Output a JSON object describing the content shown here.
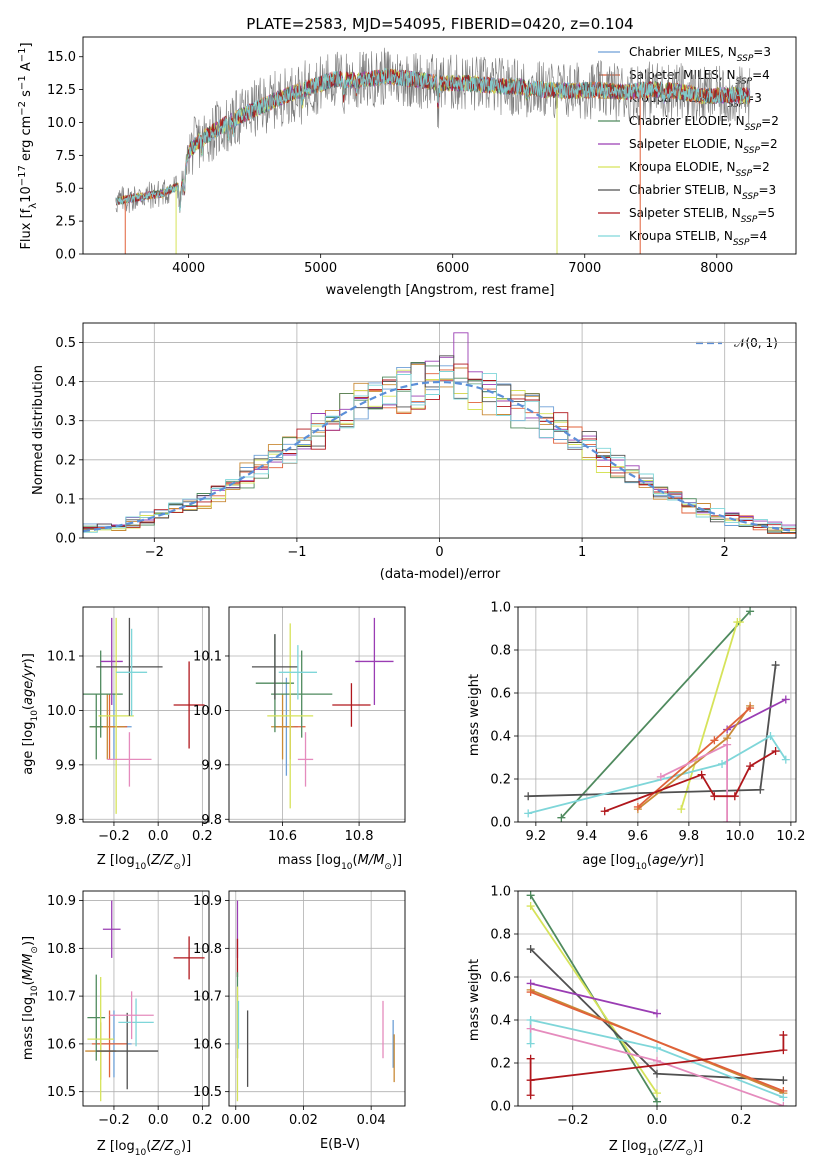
{
  "colors": {
    "chabrier_miles": "#6d9fd6",
    "salpeter_miles": "#e0613a",
    "kroupa_miles": "#c98a36",
    "chabrier_elodie": "#4f8a5e",
    "salpeter_elodie": "#9a3db3",
    "kroupa_elodie": "#d6e35a",
    "chabrier_stelib": "#505050",
    "salpeter_stelib": "#b0171c",
    "kroupa_stelib": "#7fd6d9",
    "pink": "#e58bbd",
    "normal_curve": "#5b8fd8"
  },
  "chart_data": [
    {
      "id": "spectrum",
      "type": "line",
      "title": "PLATE=2583, MJD=54095, FIBERID=0420, z=0.104",
      "xlabel": "wavelength [Angstrom, rest frame]",
      "ylabel_parts": [
        "Flux [f",
        "λ",
        "10",
        "−17",
        " erg cm",
        "−2",
        " s",
        "−1",
        " A",
        "−1",
        "]"
      ],
      "xlim": [
        3200,
        8600
      ],
      "ylim": [
        0,
        16.5
      ],
      "xticks": [
        4000,
        5000,
        6000,
        7000,
        8000
      ],
      "yticks": [
        0.0,
        2.5,
        5.0,
        7.5,
        10.0,
        12.5,
        15.0
      ],
      "grid": false,
      "legend_position": "top-right",
      "continuum_x": [
        3450,
        3600,
        3800,
        3950,
        4000,
        4100,
        4300,
        4500,
        4700,
        4900,
        5100,
        5300,
        5500,
        5700,
        5900,
        6100,
        6300,
        6500,
        6700,
        6900,
        7100,
        7300,
        7500,
        7700,
        7900,
        8100,
        8250
      ],
      "continuum_y": [
        4.0,
        4.3,
        4.6,
        5.3,
        7.8,
        8.8,
        10.0,
        11.0,
        11.9,
        12.6,
        13.3,
        13.2,
        13.5,
        13.3,
        13.0,
        13.0,
        12.8,
        12.7,
        12.5,
        12.4,
        12.5,
        12.3,
        12.5,
        12.4,
        12.0,
        12.1,
        12.0
      ],
      "series": [
        {
          "name": "Chabrier MILES",
          "nssp": "3",
          "color_key": "chabrier_miles"
        },
        {
          "name": "Salpeter MILES",
          "nssp": "4",
          "color_key": "salpeter_miles"
        },
        {
          "name": "Kroupa MILES",
          "nssp": "3",
          "color_key": "kroupa_miles"
        },
        {
          "name": "Chabrier ELODIE",
          "nssp": "2",
          "color_key": "chabrier_elodie"
        },
        {
          "name": "Salpeter ELODIE",
          "nssp": "2",
          "color_key": "salpeter_elodie"
        },
        {
          "name": "Kroupa ELODIE",
          "nssp": "2",
          "color_key": "kroupa_elodie"
        },
        {
          "name": "Chabrier STELIB",
          "nssp": "3",
          "color_key": "chabrier_stelib"
        },
        {
          "name": "Salpeter STELIB",
          "nssp": "5",
          "color_key": "salpeter_stelib"
        },
        {
          "name": "Kroupa STELIB",
          "nssp": "4",
          "color_key": "kroupa_stelib"
        }
      ],
      "legend_prefix": ", N",
      "legend_sub": "SSP",
      "legend_suffix": "="
    },
    {
      "id": "residuals",
      "type": "histogram",
      "xlabel": "(data-model)/error",
      "ylabel": "Normed distribution",
      "xlim": [
        -2.5,
        2.5
      ],
      "ylim": [
        0,
        0.55
      ],
      "xticks": [
        -2,
        -1,
        0,
        1,
        2
      ],
      "xtick_labels": [
        "−2",
        "−1",
        "0",
        "1",
        "2"
      ],
      "yticks": [
        0.0,
        0.1,
        0.2,
        0.3,
        0.4,
        0.5
      ],
      "grid": true,
      "bin_width": 0.1,
      "legend_position": "top-right",
      "normal_label": "𝒩(0, 1)"
    },
    {
      "id": "age_vs_Z",
      "type": "errorbar",
      "xlabel_parts": [
        "Z [log",
        "10",
        "(",
        "Z/Z",
        "⊙",
        ")]"
      ],
      "ylabel_parts": [
        "age  [log",
        "10",
        "(",
        "age/yr",
        ")]"
      ],
      "xlim": [
        -0.34,
        0.23
      ],
      "ylim": [
        9.795,
        10.19
      ],
      "xticks": [
        -0.2,
        0.0,
        0.2
      ],
      "xtick_labels": [
        "−0.2",
        "0.0",
        "0.2"
      ],
      "yticks": [
        9.8,
        9.9,
        10.0,
        10.1
      ],
      "grid": true,
      "points": [
        {
          "x": -0.2,
          "xerr": 0.08,
          "y": 9.97,
          "yerr": 0.06,
          "c": "chabrier_miles"
        },
        {
          "x": -0.22,
          "xerr": 0.08,
          "y": 9.97,
          "yerr": 0.06,
          "c": "salpeter_miles"
        },
        {
          "x": -0.23,
          "xerr": 0.08,
          "y": 9.97,
          "yerr": 0.06,
          "c": "kroupa_miles"
        },
        {
          "x": -0.28,
          "xerr": 0.03,
          "y": 9.97,
          "yerr": 0.06,
          "c": "chabrier_elodie"
        },
        {
          "x": -0.26,
          "xerr": 0.1,
          "y": 10.03,
          "yerr": 0.08,
          "c": "chabrier_elodie"
        },
        {
          "x": -0.21,
          "xerr": 0.05,
          "y": 10.09,
          "yerr": 0.08,
          "c": "salpeter_elodie"
        },
        {
          "x": -0.19,
          "xerr": 0.08,
          "y": 9.99,
          "yerr": 0.18,
          "c": "kroupa_elodie"
        },
        {
          "x": -0.13,
          "xerr": 0.15,
          "y": 10.08,
          "yerr": 0.09,
          "c": "chabrier_stelib"
        },
        {
          "x": 0.14,
          "xerr": 0.07,
          "y": 10.01,
          "yerr": 0.08,
          "c": "salpeter_stelib"
        },
        {
          "x": -0.12,
          "xerr": 0.07,
          "y": 10.07,
          "yerr": 0.08,
          "c": "kroupa_stelib"
        },
        {
          "x": -0.13,
          "xerr": 0.1,
          "y": 9.91,
          "yerr": 0.05,
          "c": "pink"
        }
      ]
    },
    {
      "id": "age_vs_mass",
      "type": "errorbar",
      "xlabel_parts": [
        "mass [log",
        "10",
        "(",
        "M/M",
        "⊙",
        ")]"
      ],
      "ylabel_parts": [],
      "xlim": [
        10.46,
        10.92
      ],
      "ylim": [
        9.795,
        10.19
      ],
      "xticks": [
        10.6,
        10.8
      ],
      "xtick_labels": [
        "10.6",
        "10.8"
      ],
      "yticks": [
        9.8,
        9.9,
        10.0,
        10.1
      ],
      "grid": true,
      "points": [
        {
          "x": 10.61,
          "xerr": 0.03,
          "y": 9.97,
          "yerr": 0.09,
          "c": "chabrier_miles"
        },
        {
          "x": 10.62,
          "xerr": 0.04,
          "y": 9.97,
          "yerr": 0.06,
          "c": "salpeter_miles"
        },
        {
          "x": 10.6,
          "xerr": 0.03,
          "y": 9.97,
          "yerr": 0.06,
          "c": "kroupa_miles"
        },
        {
          "x": 10.65,
          "xerr": 0.08,
          "y": 10.03,
          "yerr": 0.08,
          "c": "chabrier_elodie"
        },
        {
          "x": 10.58,
          "xerr": 0.05,
          "y": 10.05,
          "yerr": 0.09,
          "c": "chabrier_elodie"
        },
        {
          "x": 10.84,
          "xerr": 0.05,
          "y": 10.09,
          "yerr": 0.08,
          "c": "salpeter_elodie"
        },
        {
          "x": 10.62,
          "xerr": 0.06,
          "y": 9.99,
          "yerr": 0.17,
          "c": "kroupa_elodie"
        },
        {
          "x": 10.58,
          "xerr": 0.06,
          "y": 10.08,
          "yerr": 0.06,
          "c": "chabrier_stelib"
        },
        {
          "x": 10.78,
          "xerr": 0.05,
          "y": 10.01,
          "yerr": 0.04,
          "c": "salpeter_stelib"
        },
        {
          "x": 10.64,
          "xerr": 0.05,
          "y": 10.07,
          "yerr": 0.05,
          "c": "kroupa_stelib"
        },
        {
          "x": 10.66,
          "xerr": 0.02,
          "y": 9.91,
          "yerr": 0.05,
          "c": "pink"
        }
      ]
    },
    {
      "id": "mass_weight_vs_age",
      "type": "line",
      "xlabel_parts": [
        "age  [log",
        "10",
        "(",
        "age/yr",
        ")]"
      ],
      "ylabel": "mass weight",
      "xlim": [
        9.13,
        10.22
      ],
      "ylim": [
        0,
        1.0
      ],
      "xticks": [
        9.2,
        9.4,
        9.6,
        9.8,
        10.0,
        10.2
      ],
      "xtick_labels": [
        "9.2",
        "9.4",
        "9.6",
        "9.8",
        "10.0",
        "10.2"
      ],
      "yticks": [
        0.0,
        0.2,
        0.4,
        0.6,
        0.8,
        1.0
      ],
      "grid": true,
      "series": [
        {
          "c": "chabrier_elodie",
          "x": [
            9.3,
            10.04
          ],
          "y": [
            0.02,
            0.98
          ]
        },
        {
          "c": "kroupa_elodie",
          "x": [
            9.77,
            9.99,
            10.0
          ],
          "y": [
            0.06,
            0.93,
            0.93
          ]
        },
        {
          "c": "chabrier_stelib",
          "x": [
            9.17,
            10.08,
            10.14
          ],
          "y": [
            0.12,
            0.15,
            0.73
          ]
        },
        {
          "c": "kroupa_stelib",
          "x": [
            9.17,
            9.93,
            10.12,
            10.18
          ],
          "y": [
            0.04,
            0.27,
            0.4,
            0.29
          ]
        },
        {
          "c": "salpeter_elodie",
          "x": [
            9.95,
            10.18
          ],
          "y": [
            0.43,
            0.57
          ]
        },
        {
          "c": "kroupa_miles",
          "x": [
            9.6,
            9.95,
            10.04
          ],
          "y": [
            0.06,
            0.39,
            0.54
          ]
        },
        {
          "c": "salpeter_miles",
          "x": [
            9.6,
            9.9,
            10.04
          ],
          "y": [
            0.07,
            0.38,
            0.53
          ]
        },
        {
          "c": "pink",
          "x": [
            9.69,
            9.95,
            9.95
          ],
          "y": [
            0.21,
            0.36,
            0.0
          ]
        },
        {
          "c": "salpeter_stelib",
          "x": [
            9.47,
            9.85,
            9.9,
            9.98,
            10.04,
            10.14
          ],
          "y": [
            0.05,
            0.22,
            0.12,
            0.12,
            0.26,
            0.33
          ]
        }
      ]
    },
    {
      "id": "mass_vs_Z",
      "type": "errorbar",
      "xlabel_parts": [
        "Z [log",
        "10",
        "(",
        "Z/Z",
        "⊙",
        ")]"
      ],
      "ylabel_parts": [
        "mass [log",
        "10",
        "(",
        "M/M",
        "⊙",
        ")]"
      ],
      "xlim": [
        -0.34,
        0.23
      ],
      "ylim": [
        10.47,
        10.92
      ],
      "xticks": [
        -0.2,
        0.0,
        0.2
      ],
      "xtick_labels": [
        "−0.2",
        "0.0",
        "0.2"
      ],
      "yticks": [
        10.5,
        10.6,
        10.7,
        10.8,
        10.9
      ],
      "grid": true,
      "points": [
        {
          "x": -0.2,
          "xerr": 0.08,
          "y": 10.6,
          "yerr": 0.07,
          "c": "chabrier_miles"
        },
        {
          "x": -0.22,
          "xerr": 0.08,
          "y": 10.6,
          "yerr": 0.07,
          "c": "salpeter_miles"
        },
        {
          "x": -0.26,
          "xerr": 0.07,
          "y": 10.585,
          "yerr": 0.06,
          "c": "kroupa_miles"
        },
        {
          "x": -0.28,
          "xerr": 0.04,
          "y": 10.655,
          "yerr": 0.09,
          "c": "chabrier_elodie"
        },
        {
          "x": -0.21,
          "xerr": 0.04,
          "y": 10.84,
          "yerr": 0.06,
          "c": "salpeter_elodie"
        },
        {
          "x": -0.26,
          "xerr": 0.06,
          "y": 10.61,
          "yerr": 0.13,
          "c": "kroupa_elodie"
        },
        {
          "x": -0.14,
          "xerr": 0.14,
          "y": 10.585,
          "yerr": 0.08,
          "c": "chabrier_stelib"
        },
        {
          "x": 0.14,
          "xerr": 0.07,
          "y": 10.78,
          "yerr": 0.045,
          "c": "salpeter_stelib"
        },
        {
          "x": -0.1,
          "xerr": 0.08,
          "y": 10.645,
          "yerr": 0.05,
          "c": "kroupa_stelib"
        },
        {
          "x": -0.12,
          "xerr": 0.1,
          "y": 10.66,
          "yerr": 0.05,
          "c": "pink"
        }
      ]
    },
    {
      "id": "mass_vs_ebv",
      "type": "errorbar",
      "xlabel": "E(B-V)",
      "xlim": [
        -0.002,
        0.05
      ],
      "ylim": [
        10.47,
        10.92
      ],
      "xticks": [
        0.0,
        0.02,
        0.04
      ],
      "xtick_labels": [
        "0.00",
        "0.02",
        "0.04"
      ],
      "yticks": [
        10.5,
        10.6,
        10.7,
        10.8,
        10.9
      ],
      "grid": true,
      "points": [
        {
          "x": 0.0005,
          "xerr": 0,
          "y": 10.84,
          "yerr": 0.06,
          "c": "salpeter_elodie"
        },
        {
          "x": 0.0005,
          "xerr": 0,
          "y": 10.78,
          "yerr": 0.04,
          "c": "salpeter_stelib"
        },
        {
          "x": 0.0005,
          "xerr": 0,
          "y": 10.66,
          "yerr": 0.09,
          "c": "chabrier_elodie"
        },
        {
          "x": 0.0005,
          "xerr": 0,
          "y": 10.6,
          "yerr": 0.12,
          "c": "kroupa_elodie"
        },
        {
          "x": 0.0008,
          "xerr": 0,
          "y": 10.64,
          "yerr": 0.05,
          "c": "kroupa_stelib"
        },
        {
          "x": 0.0035,
          "xerr": 0,
          "y": 10.59,
          "yerr": 0.08,
          "c": "chabrier_stelib"
        },
        {
          "x": 0.0435,
          "xerr": 0,
          "y": 10.63,
          "yerr": 0.06,
          "c": "pink"
        },
        {
          "x": 0.0465,
          "xerr": 0,
          "y": 10.6,
          "yerr": 0.05,
          "c": "chabrier_miles"
        },
        {
          "x": 0.0468,
          "xerr": 0,
          "y": 10.57,
          "yerr": 0.05,
          "c": "kroupa_miles"
        }
      ]
    },
    {
      "id": "mass_weight_vs_Z",
      "type": "line",
      "xlabel_parts": [
        "Z [log",
        "10",
        "(",
        "Z/Z",
        "⊙",
        ")]"
      ],
      "ylabel": "mass weight",
      "xlim": [
        -0.33,
        0.33
      ],
      "ylim": [
        0,
        1.0
      ],
      "xticks": [
        -0.2,
        0.0,
        0.2
      ],
      "xtick_labels": [
        "−0.2",
        "0.0",
        "0.2"
      ],
      "yticks": [
        0.0,
        0.2,
        0.4,
        0.6,
        0.8,
        1.0
      ],
      "grid": true,
      "series": [
        {
          "c": "chabrier_elodie",
          "x": [
            -0.3,
            0.0
          ],
          "y": [
            0.98,
            0.02
          ]
        },
        {
          "c": "kroupa_elodie",
          "x": [
            -0.3,
            0.0
          ],
          "y": [
            0.93,
            0.06
          ]
        },
        {
          "c": "chabrier_stelib",
          "x": [
            -0.3,
            0.0,
            0.3
          ],
          "y": [
            0.73,
            0.15,
            0.12
          ]
        },
        {
          "c": "salpeter_elodie",
          "x": [
            -0.3,
            0.0
          ],
          "y": [
            0.57,
            0.43
          ]
        },
        {
          "c": "kroupa_miles",
          "x": [
            -0.3,
            0.3
          ],
          "y": [
            0.54,
            0.06
          ]
        },
        {
          "c": "salpeter_miles",
          "x": [
            -0.3,
            0.3
          ],
          "y": [
            0.53,
            0.07
          ]
        },
        {
          "c": "kroupa_stelib",
          "x": [
            -0.3,
            -0.3,
            0.0,
            0.3
          ],
          "y": [
            0.29,
            0.4,
            0.27,
            0.04
          ]
        },
        {
          "c": "pink",
          "x": [
            -0.3,
            0.0,
            0.3
          ],
          "y": [
            0.36,
            0.21,
            0.0
          ]
        },
        {
          "c": "salpeter_stelib",
          "x": [
            -0.3,
            -0.3,
            -0.3,
            0.3,
            0.3
          ],
          "y": [
            0.22,
            0.05,
            0.12,
            0.26,
            0.33
          ]
        }
      ]
    }
  ]
}
